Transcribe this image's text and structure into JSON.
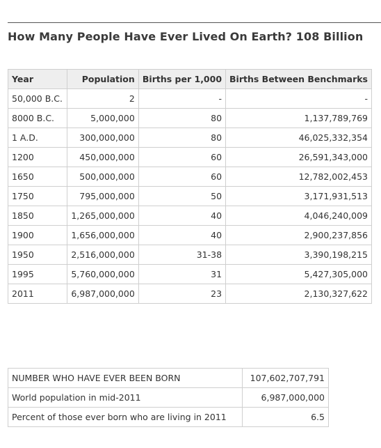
{
  "title": "How Many People Have Ever Lived On Earth? 108 Billion",
  "main_table": {
    "headers": [
      "Year",
      "Population",
      "Births per 1,000",
      "Births Between Benchmarks"
    ],
    "rows": [
      [
        "50,000 B.C.",
        "2",
        "-",
        "-"
      ],
      [
        "8000 B.C.",
        "5,000,000",
        "80",
        "1,137,789,769"
      ],
      [
        "1 A.D.",
        "300,000,000",
        "80",
        "46,025,332,354"
      ],
      [
        "1200",
        "450,000,000",
        "60",
        "26,591,343,000"
      ],
      [
        "1650",
        "500,000,000",
        "60",
        "12,782,002,453"
      ],
      [
        "1750",
        "795,000,000",
        "50",
        "3,171,931,513"
      ],
      [
        "1850",
        "1,265,000,000",
        "40",
        "4,046,240,009"
      ],
      [
        "1900",
        "1,656,000,000",
        "40",
        "2,900,237,856"
      ],
      [
        "1950",
        "2,516,000,000",
        "31-38",
        "3,390,198,215"
      ],
      [
        "1995",
        "5,760,000,000",
        "31",
        "5,427,305,000"
      ],
      [
        "2011",
        "6,987,000,000",
        "23",
        "2,130,327,622"
      ]
    ]
  },
  "summary_table": {
    "rows": [
      [
        "NUMBER WHO HAVE EVER BEEN BORN",
        "107,602,707,791"
      ],
      [
        "World population in mid-2011",
        "6,987,000,000"
      ],
      [
        "Percent of those ever born who are living in 2011",
        "6.5"
      ]
    ]
  }
}
